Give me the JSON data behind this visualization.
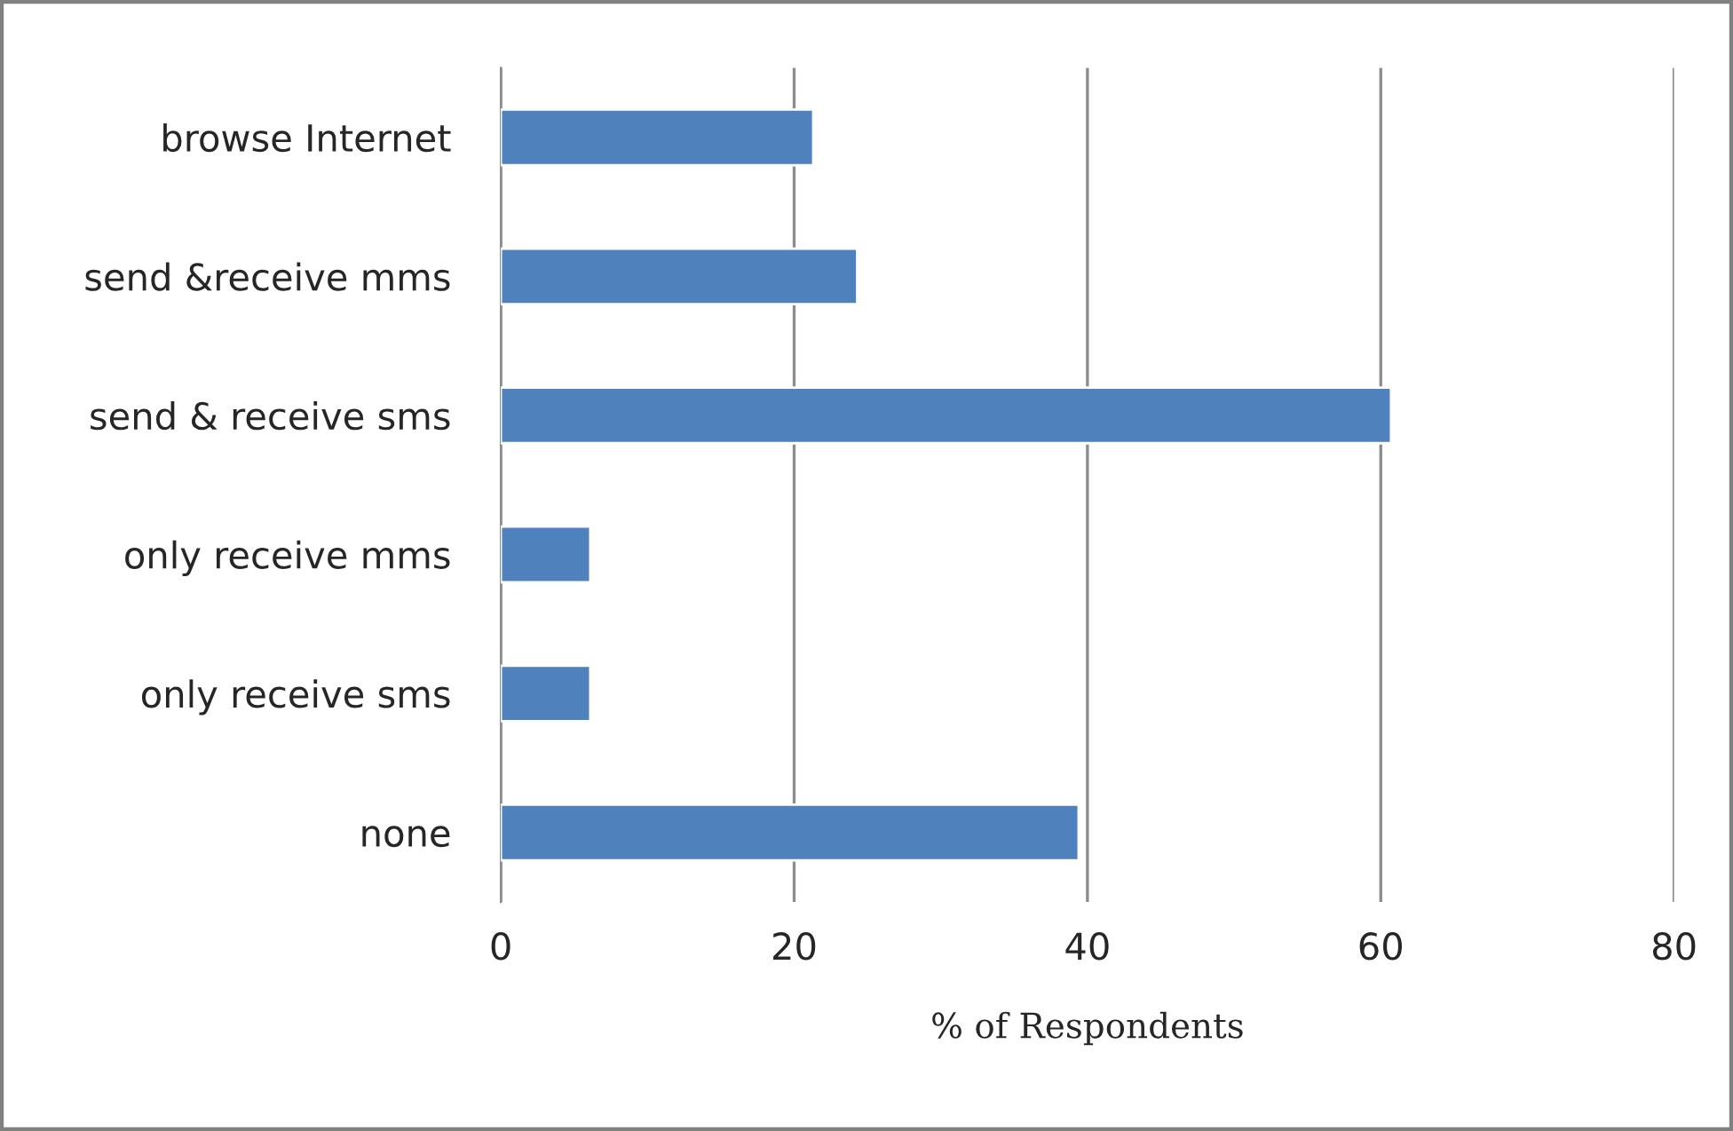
{
  "chart_data": {
    "type": "bar",
    "orientation": "horizontal",
    "xlabel": "% of Respondents",
    "categories": [
      "browse Internet",
      "send &receive mms",
      "send & receive sms",
      "only receive mms",
      "only receive sms",
      "none"
    ],
    "values": [
      21.3,
      24.3,
      60.7,
      6.1,
      6.1,
      39.4
    ],
    "color": "#4f81bd",
    "xlim": [
      0,
      80
    ],
    "xticks": [
      0,
      20,
      40,
      60,
      80
    ],
    "grid": "x",
    "legend": false
  }
}
